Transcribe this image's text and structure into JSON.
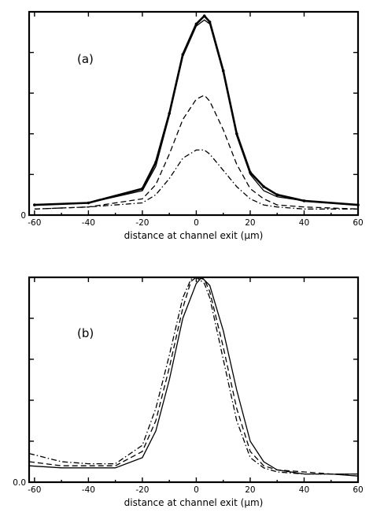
{
  "chart_data": [
    {
      "panel_label": "(a)",
      "type": "line",
      "xlabel": "distance at channel exit (μm)",
      "xlim": [
        -62,
        60
      ],
      "ylim": [
        0,
        1.0
      ],
      "x_ticks": [
        "-60",
        "-40",
        "-20",
        "0",
        "20",
        "40",
        "60"
      ],
      "y_tick_labels": [
        "0"
      ],
      "grid": false,
      "series": [
        {
          "style": "dots",
          "x": [
            -60,
            -40,
            -20,
            -15,
            -10,
            -5,
            0,
            3,
            5,
            10,
            15,
            20,
            25,
            30,
            40,
            60
          ],
          "y": [
            0.05,
            0.06,
            0.13,
            0.26,
            0.5,
            0.79,
            0.94,
            0.98,
            0.95,
            0.71,
            0.4,
            0.21,
            0.14,
            0.1,
            0.07,
            0.05
          ]
        },
        {
          "style": "solid",
          "x": [
            -60,
            -40,
            -20,
            -15,
            -10,
            -5,
            0,
            3,
            5,
            10,
            15,
            20,
            25,
            30,
            40,
            60
          ],
          "y": [
            0.05,
            0.06,
            0.12,
            0.24,
            0.49,
            0.78,
            0.93,
            0.96,
            0.94,
            0.7,
            0.39,
            0.2,
            0.12,
            0.09,
            0.07,
            0.05
          ]
        },
        {
          "style": "dashed",
          "x": [
            -60,
            -40,
            -20,
            -15,
            -10,
            -5,
            0,
            3,
            5,
            10,
            15,
            20,
            25,
            30,
            40,
            60
          ],
          "y": [
            0.03,
            0.04,
            0.08,
            0.15,
            0.3,
            0.47,
            0.57,
            0.59,
            0.56,
            0.42,
            0.25,
            0.13,
            0.08,
            0.05,
            0.04,
            0.03
          ]
        },
        {
          "style": "dashdot",
          "x": [
            -60,
            -40,
            -20,
            -15,
            -10,
            -5,
            0,
            3,
            5,
            10,
            15,
            20,
            25,
            30,
            40,
            60
          ],
          "y": [
            0.03,
            0.04,
            0.06,
            0.1,
            0.18,
            0.28,
            0.32,
            0.32,
            0.3,
            0.22,
            0.14,
            0.08,
            0.05,
            0.04,
            0.03,
            0.03
          ]
        }
      ]
    },
    {
      "panel_label": "(b)",
      "type": "line",
      "xlabel": "distance at channel exit (μm)",
      "xlim": [
        -62,
        60
      ],
      "ylim": [
        0,
        1.0
      ],
      "x_ticks": [
        "-60",
        "-40",
        "-20",
        "0",
        "20",
        "40",
        "60"
      ],
      "y_tick_labels": [
        "0.0"
      ],
      "grid": false,
      "series": [
        {
          "style": "solid",
          "x": [
            -62,
            -50,
            -40,
            -30,
            -20,
            -15,
            -10,
            -5,
            0,
            2,
            5,
            10,
            15,
            20,
            25,
            30,
            40,
            50,
            60
          ],
          "y": [
            0.08,
            0.07,
            0.07,
            0.07,
            0.12,
            0.25,
            0.5,
            0.8,
            0.97,
            1.0,
            0.96,
            0.74,
            0.45,
            0.2,
            0.1,
            0.06,
            0.04,
            0.04,
            0.03
          ]
        },
        {
          "style": "dashed",
          "x": [
            -62,
            -50,
            -40,
            -30,
            -20,
            -15,
            -10,
            -5,
            -2,
            0,
            3,
            5,
            10,
            15,
            20,
            25,
            30,
            40,
            50,
            60
          ],
          "y": [
            0.1,
            0.08,
            0.08,
            0.08,
            0.15,
            0.3,
            0.56,
            0.85,
            0.98,
            1.0,
            0.99,
            0.93,
            0.66,
            0.36,
            0.15,
            0.08,
            0.06,
            0.05,
            0.04,
            0.04
          ]
        },
        {
          "style": "dashdot",
          "x": [
            -62,
            -50,
            -40,
            -30,
            -20,
            -15,
            -10,
            -5,
            -2,
            0,
            3,
            5,
            10,
            15,
            20,
            25,
            30,
            40,
            50,
            60
          ],
          "y": [
            0.14,
            0.1,
            0.09,
            0.09,
            0.18,
            0.36,
            0.62,
            0.9,
            0.99,
            1.0,
            0.97,
            0.9,
            0.6,
            0.3,
            0.12,
            0.07,
            0.05,
            0.04,
            0.04,
            0.04
          ]
        }
      ]
    }
  ]
}
